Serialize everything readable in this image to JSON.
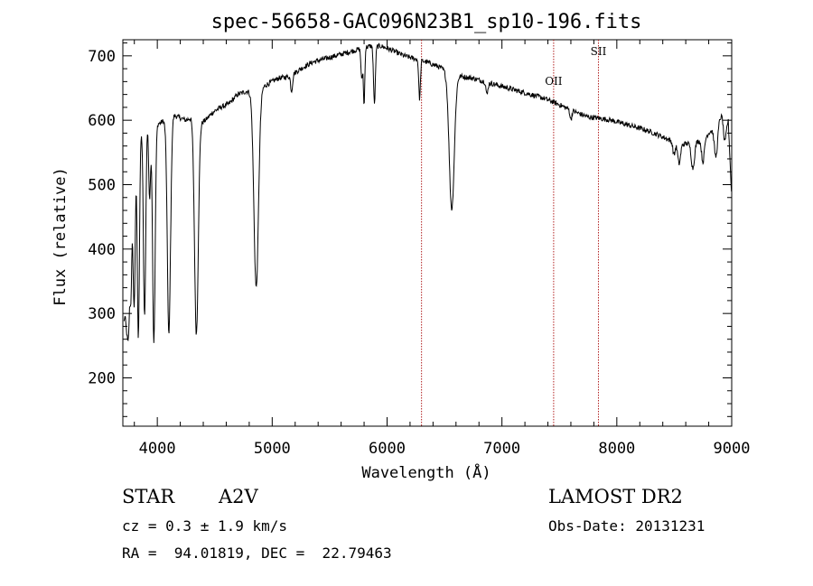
{
  "chart_data": {
    "type": "line",
    "title": "spec-56658-GAC096N23B1_sp10-196.fits",
    "xlabel": "Wavelength (Å)",
    "ylabel": "Flux (relative)",
    "xlim": [
      3700,
      9000
    ],
    "ylim": [
      125,
      725
    ],
    "xticks": [
      4000,
      5000,
      6000,
      7000,
      8000,
      9000
    ],
    "yticks": [
      200,
      300,
      400,
      500,
      600,
      700
    ],
    "grid": false,
    "line_color": "#000000",
    "marker_color": "#b22222",
    "continuum": [
      [
        3710,
        290
      ],
      [
        3760,
        420
      ],
      [
        3790,
        520
      ],
      [
        3830,
        560
      ],
      [
        3870,
        590
      ],
      [
        3920,
        600
      ],
      [
        3980,
        595
      ],
      [
        4020,
        595
      ],
      [
        4060,
        600
      ],
      [
        4120,
        610
      ],
      [
        4180,
        605
      ],
      [
        4250,
        600
      ],
      [
        4300,
        605
      ],
      [
        4360,
        595
      ],
      [
        4420,
        600
      ],
      [
        4480,
        612
      ],
      [
        4550,
        620
      ],
      [
        4620,
        625
      ],
      [
        4700,
        640
      ],
      [
        4780,
        645
      ],
      [
        4860,
        645
      ],
      [
        4950,
        655
      ],
      [
        5050,
        665
      ],
      [
        5150,
        668
      ],
      [
        5250,
        680
      ],
      [
        5350,
        690
      ],
      [
        5450,
        695
      ],
      [
        5550,
        700
      ],
      [
        5650,
        705
      ],
      [
        5750,
        710
      ],
      [
        5850,
        715
      ],
      [
        5950,
        715
      ],
      [
        6050,
        708
      ],
      [
        6150,
        700
      ],
      [
        6250,
        695
      ],
      [
        6350,
        690
      ],
      [
        6450,
        683
      ],
      [
        6550,
        673
      ],
      [
        6650,
        668
      ],
      [
        6750,
        665
      ],
      [
        6850,
        660
      ],
      [
        6950,
        655
      ],
      [
        7050,
        650
      ],
      [
        7150,
        645
      ],
      [
        7250,
        640
      ],
      [
        7350,
        635
      ],
      [
        7450,
        628
      ],
      [
        7550,
        620
      ],
      [
        7650,
        612
      ],
      [
        7750,
        605
      ],
      [
        7850,
        603
      ],
      [
        7950,
        600
      ],
      [
        8050,
        595
      ],
      [
        8150,
        590
      ],
      [
        8250,
        585
      ],
      [
        8350,
        578
      ],
      [
        8450,
        570
      ],
      [
        8550,
        562
      ],
      [
        8650,
        565
      ],
      [
        8750,
        570
      ],
      [
        8850,
        590
      ],
      [
        8920,
        610
      ],
      [
        8970,
        600
      ],
      [
        9000,
        480
      ]
    ],
    "absorption_lines": [
      [
        3735,
        70,
        10
      ],
      [
        3750,
        100,
        8
      ],
      [
        3770,
        130,
        8
      ],
      [
        3798,
        220,
        9
      ],
      [
        3835,
        300,
        9
      ],
      [
        3889,
        300,
        10
      ],
      [
        3933,
        120,
        8
      ],
      [
        3970,
        340,
        11
      ],
      [
        4101,
        340,
        14
      ],
      [
        4340,
        330,
        16
      ],
      [
        4861,
        305,
        20
      ],
      [
        5169,
        25,
        8
      ],
      [
        5780,
        50,
        7
      ],
      [
        5800,
        90,
        6
      ],
      [
        5890,
        90,
        8
      ],
      [
        6283,
        60,
        7
      ],
      [
        6563,
        210,
        22
      ],
      [
        6870,
        20,
        8
      ],
      [
        7600,
        15,
        8
      ],
      [
        8498,
        20,
        10
      ],
      [
        8542,
        30,
        12
      ],
      [
        8662,
        40,
        14
      ],
      [
        8750,
        35,
        12
      ],
      [
        8863,
        50,
        14
      ],
      [
        8940,
        40,
        12
      ]
    ],
    "markers": [
      {
        "x": 6300,
        "label": ""
      },
      {
        "x": 7450,
        "label": "OII"
      },
      {
        "x": 7840,
        "label": "SII"
      }
    ]
  },
  "info": {
    "object_class": "STAR",
    "subclass": "A2V",
    "survey": "LAMOST DR2",
    "cz": "cz = 0.3 ± 1.9 km/s",
    "obs_date": "Obs-Date: 20131231",
    "coords": "RA =  94.01819, DEC =  22.79463"
  }
}
